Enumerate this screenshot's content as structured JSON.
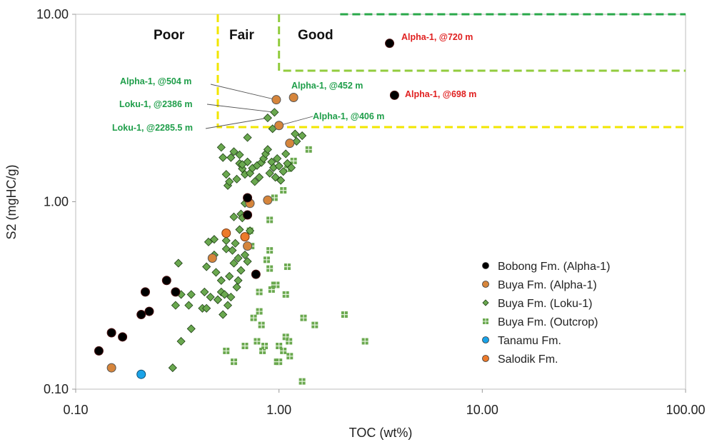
{
  "chart_data": {
    "type": "scatter",
    "xlabel": "TOC (wt%)",
    "ylabel": "S2 (mgHC/g)",
    "x_scale": "log",
    "y_scale": "log",
    "xlim": [
      0.1,
      100
    ],
    "ylim": [
      0.1,
      10
    ],
    "x_ticks": [
      "0.10",
      "1.00",
      "10.00",
      "100.00"
    ],
    "y_ticks": [
      "0.10",
      "1.00",
      "10.00"
    ],
    "grid": false,
    "legend_position": "bottom-right",
    "zones": [
      {
        "label": "Poor"
      },
      {
        "label": "Fair"
      },
      {
        "label": "Good"
      }
    ],
    "zone_boundaries": {
      "fair_min_toc": 0.5,
      "good_min_toc": 1.0,
      "fair_good_min_s2": 2.5,
      "very_good_min_toc": 1.0,
      "very_good_min_s2": 5.0,
      "excellent_min_toc": 2.0,
      "excellent_min_s2": 10.0
    },
    "colors": {
      "fair_line": "#f2e600",
      "good_line": "#92cc3e",
      "excellent_line": "#2aa84a",
      "bobong": "#000000",
      "buya_alpha": "#d6853b",
      "buya_loku": "#6aa84f",
      "buya_outcrop": "#6aa84f",
      "tanamu": "#1aa3e8",
      "salodik": "#ec7a2b",
      "annot_green": "#1f9e4a",
      "annot_red": "#e02020"
    },
    "series": [
      {
        "name": "Bobong Fm. (Alpha-1)",
        "marker": "circle-black",
        "points": [
          [
            0.13,
            0.16
          ],
          [
            0.15,
            0.2
          ],
          [
            0.17,
            0.19
          ],
          [
            0.21,
            0.25
          ],
          [
            0.22,
            0.33
          ],
          [
            0.23,
            0.26
          ],
          [
            0.28,
            0.38
          ],
          [
            0.31,
            0.33
          ],
          [
            0.7,
            0.85
          ],
          [
            0.7,
            1.05
          ],
          [
            0.77,
            0.41
          ],
          [
            3.5,
            7.0
          ],
          [
            3.7,
            3.7
          ]
        ]
      },
      {
        "name": "Buya Fm. (Alpha-1)",
        "marker": "circle-brown",
        "points": [
          [
            0.15,
            0.13
          ],
          [
            0.47,
            0.5
          ],
          [
            0.7,
            0.58
          ],
          [
            0.72,
            0.98
          ],
          [
            0.88,
            1.02
          ],
          [
            0.97,
            3.5
          ],
          [
            1.0,
            2.55
          ],
          [
            1.18,
            3.6
          ],
          [
            1.13,
            2.05
          ]
        ]
      },
      {
        "name": "Buya Fm. (Loku-1)",
        "marker": "diamond",
        "points": [
          [
            0.3,
            0.13
          ],
          [
            0.33,
            0.18
          ],
          [
            0.32,
            0.47
          ],
          [
            0.31,
            0.28
          ],
          [
            0.33,
            0.32
          ],
          [
            0.36,
            0.28
          ],
          [
            0.37,
            0.21
          ],
          [
            0.37,
            0.32
          ],
          [
            0.42,
            0.27
          ],
          [
            0.43,
            0.33
          ],
          [
            0.44,
            0.45
          ],
          [
            0.45,
            0.61
          ],
          [
            0.44,
            0.27
          ],
          [
            0.46,
            0.31
          ],
          [
            0.48,
            0.52
          ],
          [
            0.48,
            0.63
          ],
          [
            0.49,
            0.42
          ],
          [
            0.5,
            0.3
          ],
          [
            0.5,
            0.3
          ],
          [
            0.52,
            0.33
          ],
          [
            0.52,
            0.38
          ],
          [
            0.53,
            0.25
          ],
          [
            0.54,
            0.32
          ],
          [
            0.55,
            0.56
          ],
          [
            0.55,
            0.62
          ],
          [
            0.56,
            0.28
          ],
          [
            0.57,
            0.4
          ],
          [
            0.58,
            0.31
          ],
          [
            0.59,
            0.55
          ],
          [
            0.6,
            0.47
          ],
          [
            0.6,
            0.83
          ],
          [
            0.61,
            0.6
          ],
          [
            0.62,
            0.35
          ],
          [
            0.63,
            0.38
          ],
          [
            0.63,
            0.5
          ],
          [
            0.64,
            0.71
          ],
          [
            0.65,
            0.86
          ],
          [
            0.65,
            0.43
          ],
          [
            0.66,
            0.82
          ],
          [
            0.68,
            0.52
          ],
          [
            0.7,
            0.48
          ],
          [
            0.72,
            0.7
          ],
          [
            0.56,
            1.22
          ],
          [
            0.57,
            1.28
          ],
          [
            0.55,
            1.4
          ],
          [
            0.58,
            1.72
          ],
          [
            0.6,
            1.85
          ],
          [
            0.62,
            1.32
          ],
          [
            0.64,
            1.6
          ],
          [
            0.66,
            1.5
          ],
          [
            0.68,
            1.4
          ],
          [
            0.7,
            1.63
          ],
          [
            0.72,
            1.42
          ],
          [
            0.74,
            1.51
          ],
          [
            0.76,
            1.28
          ],
          [
            0.78,
            1.56
          ],
          [
            0.8,
            1.35
          ],
          [
            0.82,
            1.62
          ],
          [
            0.84,
            1.7
          ],
          [
            0.86,
            1.8
          ],
          [
            0.88,
            1.9
          ],
          [
            0.9,
            1.42
          ],
          [
            0.92,
            1.63
          ],
          [
            0.94,
            1.52
          ],
          [
            0.96,
            1.35
          ],
          [
            0.98,
            1.7
          ],
          [
            1.0,
            1.55
          ],
          [
            1.02,
            1.3
          ],
          [
            1.05,
            1.45
          ],
          [
            1.08,
            1.8
          ],
          [
            1.1,
            1.6
          ],
          [
            1.15,
            1.52
          ],
          [
            1.2,
            2.3
          ],
          [
            1.22,
            2.1
          ],
          [
            1.3,
            2.25
          ],
          [
            0.52,
            1.95
          ],
          [
            0.53,
            1.72
          ],
          [
            0.66,
            1.58
          ],
          [
            0.7,
            2.2
          ],
          [
            0.68,
            0.98
          ],
          [
            0.7,
            1.02
          ],
          [
            0.64,
            1.78
          ],
          [
            0.88,
            2.8
          ],
          [
            0.93,
            2.45
          ],
          [
            0.95,
            3.0
          ]
        ]
      },
      {
        "name": "Buya Fm. (Outcrop)",
        "marker": "plus-square",
        "points": [
          [
            0.55,
            0.16
          ],
          [
            0.6,
            0.14
          ],
          [
            0.68,
            0.17
          ],
          [
            0.72,
            0.7
          ],
          [
            0.73,
            0.58
          ],
          [
            0.75,
            0.24
          ],
          [
            0.78,
            0.18
          ],
          [
            0.8,
            0.26
          ],
          [
            0.8,
            0.33
          ],
          [
            0.82,
            0.22
          ],
          [
            0.83,
            0.16
          ],
          [
            0.85,
            0.17
          ],
          [
            0.87,
            0.49
          ],
          [
            0.9,
            0.55
          ],
          [
            0.9,
            0.44
          ],
          [
            0.92,
            0.34
          ],
          [
            0.95,
            0.36
          ],
          [
            0.97,
            0.36
          ],
          [
            0.98,
            0.14
          ],
          [
            1.0,
            0.14
          ],
          [
            1.0,
            0.17
          ],
          [
            1.05,
            0.16
          ],
          [
            1.08,
            0.19
          ],
          [
            1.08,
            0.32
          ],
          [
            1.1,
            0.45
          ],
          [
            1.12,
            0.18
          ],
          [
            1.13,
            0.15
          ],
          [
            1.3,
            0.11
          ],
          [
            1.32,
            0.24
          ],
          [
            1.5,
            0.22
          ],
          [
            2.1,
            0.25
          ],
          [
            2.65,
            0.18
          ],
          [
            0.9,
            0.8
          ],
          [
            1.1,
            1.5
          ],
          [
            1.18,
            1.65
          ],
          [
            1.4,
            1.9
          ],
          [
            1.05,
            1.15
          ],
          [
            0.95,
            1.05
          ]
        ]
      },
      {
        "name": "Tanamu Fm.",
        "marker": "circle-blue",
        "points": [
          [
            0.21,
            0.12
          ]
        ]
      },
      {
        "name": "Salodik Fm.",
        "marker": "circle-orange",
        "points": [
          [
            0.55,
            0.68
          ],
          [
            0.68,
            0.65
          ]
        ]
      }
    ],
    "annotations": [
      {
        "text": "Alpha-1, @720 m",
        "color": "red",
        "x": 3.5,
        "y": 7.0
      },
      {
        "text": "Alpha-1, @698 m",
        "color": "red",
        "x": 3.7,
        "y": 3.7
      },
      {
        "text": "Alpha-1, @452 m",
        "color": "green",
        "x": 1.18,
        "y": 3.6
      },
      {
        "text": "Alpha-1, @504 m",
        "color": "green",
        "x": 0.97,
        "y": 3.5
      },
      {
        "text": "Loku-1, @2386 m",
        "color": "green",
        "x": 0.95,
        "y": 3.0
      },
      {
        "text": "Alpha-1, @406 m",
        "color": "green",
        "x": 1.0,
        "y": 2.55
      },
      {
        "text": "Loku-1, @2285.5 m",
        "color": "green",
        "x": 0.88,
        "y": 2.8
      }
    ]
  }
}
